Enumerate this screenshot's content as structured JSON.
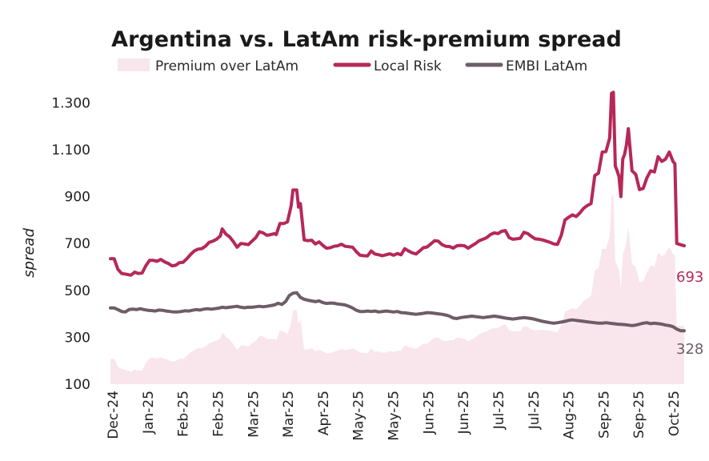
{
  "chart_data": {
    "type": "line",
    "title": "Argentina vs. LatAm risk-premium spread",
    "xlabel": "",
    "ylabel": "spread",
    "ylim": [
      100,
      1380
    ],
    "yticks": [
      100,
      300,
      500,
      700,
      900,
      1100,
      1300
    ],
    "ytick_labels": [
      "100",
      "300",
      "500",
      "700",
      "900",
      "1.100",
      "1.300"
    ],
    "x_tick_labels": [
      "Dec-24",
      "Jan-25",
      "Feb-25",
      "Feb-25",
      "Mar-25",
      "Mar-25",
      "Apr-25",
      "May-25",
      "May-25",
      "Jun-25",
      "Jun-25",
      "Jul-25",
      "Jul-25",
      "Aug-25",
      "Sep-25",
      "Sep-25",
      "Oct-25"
    ],
    "colors": {
      "local": "#b5285a",
      "embi": "#6e5d66",
      "premium": "#f9e6ec"
    },
    "legend": {
      "premium": "Premium over LatAm",
      "local": "Local Risk",
      "embi": "EMBI LatAm"
    },
    "end_labels": {
      "local": "693",
      "embi": "328"
    },
    "x_range": [
      0,
      280
    ],
    "series": [
      {
        "name": "Local Risk",
        "key": "local",
        "points": [
          [
            0,
            635
          ],
          [
            2,
            635
          ],
          [
            4,
            590
          ],
          [
            6,
            572
          ],
          [
            9,
            568
          ],
          [
            11,
            565
          ],
          [
            13,
            578
          ],
          [
            15,
            572
          ],
          [
            17,
            574
          ],
          [
            19,
            605
          ],
          [
            21,
            628
          ],
          [
            23,
            628
          ],
          [
            25,
            624
          ],
          [
            27,
            632
          ],
          [
            29,
            622
          ],
          [
            31,
            615
          ],
          [
            33,
            605
          ],
          [
            35,
            607
          ],
          [
            37,
            618
          ],
          [
            39,
            620
          ],
          [
            41,
            635
          ],
          [
            43,
            653
          ],
          [
            45,
            668
          ],
          [
            47,
            676
          ],
          [
            49,
            678
          ],
          [
            51,
            688
          ],
          [
            53,
            705
          ],
          [
            55,
            710
          ],
          [
            57,
            718
          ],
          [
            59,
            732
          ],
          [
            60,
            762
          ],
          [
            62,
            740
          ],
          [
            64,
            728
          ],
          [
            66,
            708
          ],
          [
            68,
            684
          ],
          [
            70,
            700
          ],
          [
            72,
            698
          ],
          [
            74,
            695
          ],
          [
            76,
            710
          ],
          [
            78,
            725
          ],
          [
            80,
            750
          ],
          [
            82,
            745
          ],
          [
            84,
            735
          ],
          [
            86,
            738
          ],
          [
            88,
            742
          ],
          [
            89,
            738
          ],
          [
            91,
            785
          ],
          [
            93,
            785
          ],
          [
            95,
            792
          ],
          [
            97,
            860
          ],
          [
            98,
            928
          ],
          [
            100,
            928
          ],
          [
            101,
            855
          ],
          [
            102,
            870
          ],
          [
            104,
            715
          ],
          [
            106,
            712
          ],
          [
            108,
            714
          ],
          [
            110,
            698
          ],
          [
            112,
            707
          ],
          [
            114,
            692
          ],
          [
            116,
            680
          ],
          [
            118,
            682
          ],
          [
            120,
            688
          ],
          [
            122,
            690
          ],
          [
            124,
            697
          ],
          [
            126,
            688
          ],
          [
            128,
            686
          ],
          [
            130,
            684
          ],
          [
            132,
            665
          ],
          [
            134,
            650
          ],
          [
            136,
            648
          ],
          [
            138,
            647
          ],
          [
            140,
            668
          ],
          [
            142,
            655
          ],
          [
            144,
            652
          ],
          [
            146,
            648
          ],
          [
            148,
            652
          ],
          [
            150,
            656
          ],
          [
            152,
            650
          ],
          [
            154,
            657
          ],
          [
            156,
            652
          ],
          [
            158,
            678
          ],
          [
            160,
            668
          ],
          [
            162,
            660
          ],
          [
            164,
            655
          ],
          [
            166,
            668
          ],
          [
            168,
            682
          ],
          [
            170,
            685
          ],
          [
            172,
            698
          ],
          [
            174,
            712
          ],
          [
            176,
            710
          ],
          [
            178,
            695
          ],
          [
            180,
            688
          ],
          [
            182,
            687
          ],
          [
            184,
            680
          ],
          [
            186,
            690
          ],
          [
            188,
            692
          ],
          [
            190,
            690
          ],
          [
            192,
            680
          ],
          [
            194,
            690
          ],
          [
            196,
            700
          ],
          [
            198,
            712
          ],
          [
            200,
            718
          ],
          [
            202,
            725
          ],
          [
            204,
            738
          ],
          [
            206,
            745
          ],
          [
            208,
            742
          ],
          [
            210,
            752
          ],
          [
            212,
            755
          ],
          [
            214,
            725
          ],
          [
            216,
            718
          ],
          [
            218,
            720
          ],
          [
            220,
            722
          ],
          [
            222,
            748
          ],
          [
            224,
            742
          ],
          [
            226,
            730
          ],
          [
            228,
            720
          ],
          [
            230,
            718
          ],
          [
            232,
            715
          ],
          [
            234,
            710
          ],
          [
            236,
            705
          ],
          [
            238,
            698
          ],
          [
            240,
            696
          ],
          [
            242,
            735
          ],
          [
            244,
            800
          ],
          [
            246,
            812
          ],
          [
            248,
            822
          ],
          [
            250,
            815
          ],
          [
            252,
            830
          ],
          [
            254,
            850
          ],
          [
            256,
            862
          ],
          [
            258,
            870
          ],
          [
            260,
            990
          ],
          [
            262,
            1000
          ],
          [
            264,
            1090
          ],
          [
            266,
            1092
          ],
          [
            268,
            1150
          ],
          [
            269,
            1340
          ],
          [
            270,
            1345
          ],
          [
            271,
            1030
          ],
          [
            272,
            1010
          ],
          [
            273,
            985
          ],
          [
            274,
            900
          ],
          [
            275,
            1060
          ],
          [
            276,
            1080
          ],
          [
            277,
            1120
          ],
          [
            278,
            1190
          ],
          [
            279,
            1100
          ],
          [
            280,
            1010
          ]
        ]
      },
      {
        "name": "EMBI LatAm",
        "key": "embi",
        "points": [
          [
            0,
            425
          ],
          [
            2,
            425
          ],
          [
            4,
            418
          ],
          [
            6,
            410
          ],
          [
            8,
            408
          ],
          [
            10,
            418
          ],
          [
            12,
            420
          ],
          [
            14,
            418
          ],
          [
            16,
            422
          ],
          [
            18,
            418
          ],
          [
            20,
            415
          ],
          [
            22,
            414
          ],
          [
            24,
            412
          ],
          [
            26,
            416
          ],
          [
            28,
            415
          ],
          [
            30,
            412
          ],
          [
            32,
            410
          ],
          [
            34,
            408
          ],
          [
            36,
            408
          ],
          [
            38,
            410
          ],
          [
            40,
            413
          ],
          [
            42,
            412
          ],
          [
            44,
            415
          ],
          [
            46,
            418
          ],
          [
            48,
            416
          ],
          [
            50,
            420
          ],
          [
            52,
            422
          ],
          [
            54,
            420
          ],
          [
            56,
            422
          ],
          [
            58,
            424
          ],
          [
            60,
            428
          ],
          [
            62,
            426
          ],
          [
            64,
            428
          ],
          [
            66,
            430
          ],
          [
            68,
            432
          ],
          [
            70,
            428
          ],
          [
            72,
            426
          ],
          [
            74,
            428
          ],
          [
            76,
            428
          ],
          [
            78,
            430
          ],
          [
            80,
            432
          ],
          [
            82,
            430
          ],
          [
            84,
            432
          ],
          [
            86,
            435
          ],
          [
            88,
            438
          ],
          [
            90,
            445
          ],
          [
            92,
            440
          ],
          [
            94,
            452
          ],
          [
            96,
            478
          ],
          [
            98,
            488
          ],
          [
            100,
            490
          ],
          [
            102,
            470
          ],
          [
            104,
            462
          ],
          [
            106,
            458
          ],
          [
            108,
            455
          ],
          [
            110,
            452
          ],
          [
            112,
            455
          ],
          [
            114,
            448
          ],
          [
            116,
            444
          ],
          [
            118,
            446
          ],
          [
            120,
            445
          ],
          [
            122,
            442
          ],
          [
            124,
            440
          ],
          [
            126,
            438
          ],
          [
            128,
            432
          ],
          [
            130,
            425
          ],
          [
            132,
            415
          ],
          [
            134,
            410
          ],
          [
            136,
            410
          ],
          [
            138,
            412
          ],
          [
            140,
            410
          ],
          [
            142,
            412
          ],
          [
            144,
            408
          ],
          [
            146,
            410
          ],
          [
            148,
            412
          ],
          [
            150,
            410
          ],
          [
            152,
            408
          ],
          [
            154,
            410
          ],
          [
            156,
            405
          ],
          [
            158,
            404
          ],
          [
            160,
            402
          ],
          [
            162,
            400
          ],
          [
            164,
            398
          ],
          [
            166,
            400
          ],
          [
            168,
            402
          ],
          [
            170,
            405
          ],
          [
            172,
            404
          ],
          [
            174,
            402
          ],
          [
            176,
            400
          ],
          [
            178,
            398
          ],
          [
            180,
            395
          ],
          [
            182,
            390
          ],
          [
            184,
            382
          ],
          [
            186,
            380
          ],
          [
            188,
            384
          ],
          [
            190,
            386
          ],
          [
            192,
            388
          ],
          [
            194,
            390
          ],
          [
            196,
            388
          ],
          [
            198,
            386
          ],
          [
            200,
            384
          ],
          [
            202,
            386
          ],
          [
            204,
            388
          ],
          [
            206,
            390
          ],
          [
            208,
            388
          ],
          [
            210,
            385
          ],
          [
            212,
            382
          ],
          [
            214,
            380
          ],
          [
            216,
            378
          ],
          [
            218,
            380
          ],
          [
            220,
            382
          ],
          [
            222,
            384
          ],
          [
            224,
            382
          ],
          [
            226,
            380
          ],
          [
            228,
            376
          ],
          [
            230,
            372
          ],
          [
            232,
            368
          ],
          [
            234,
            365
          ],
          [
            236,
            362
          ],
          [
            238,
            360
          ],
          [
            240,
            362
          ],
          [
            242,
            365
          ],
          [
            244,
            368
          ],
          [
            246,
            372
          ],
          [
            248,
            374
          ],
          [
            250,
            372
          ],
          [
            252,
            370
          ],
          [
            254,
            368
          ],
          [
            256,
            366
          ],
          [
            258,
            364
          ],
          [
            260,
            362
          ],
          [
            262,
            360
          ],
          [
            264,
            360
          ],
          [
            266,
            362
          ],
          [
            268,
            360
          ],
          [
            270,
            358
          ],
          [
            272,
            356
          ],
          [
            274,
            355
          ],
          [
            276,
            354
          ],
          [
            278,
            352
          ],
          [
            280,
            350
          ]
        ]
      }
    ],
    "x_range_total": [
      0,
      280
    ],
    "note": "Local Risk series continues beyond x=280 in chart; see extra points"
  }
}
